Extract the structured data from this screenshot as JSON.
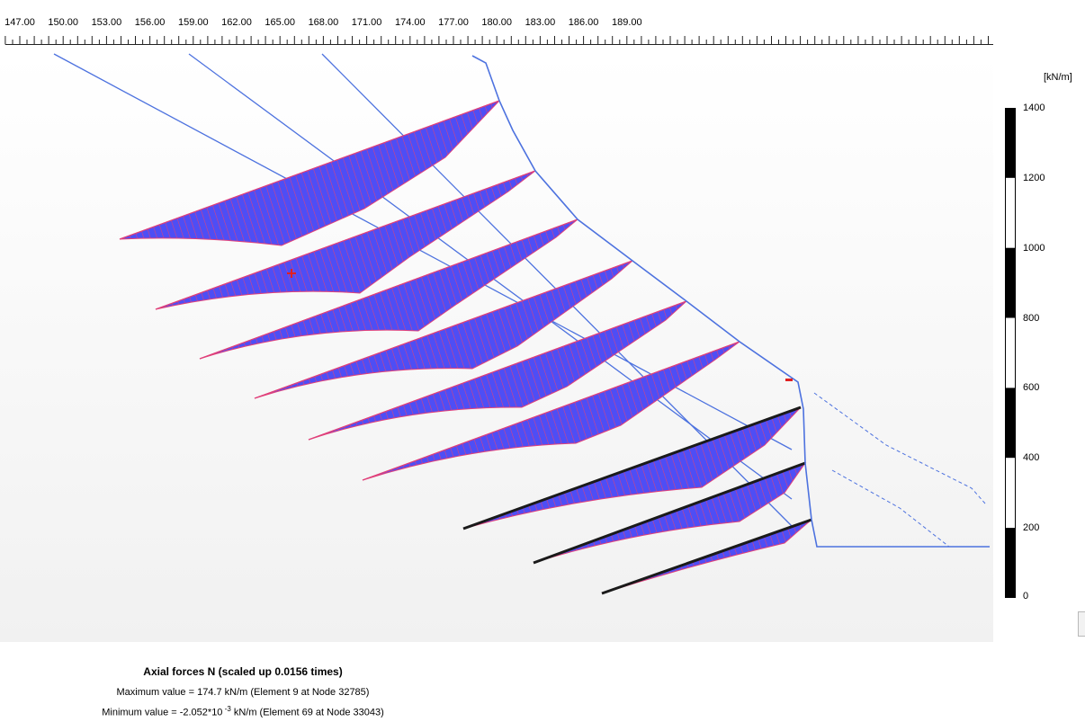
{
  "ruler": {
    "ticks": [
      "147.00",
      "150.00",
      "153.00",
      "156.00",
      "159.00",
      "162.00",
      "165.00",
      "168.00",
      "171.00",
      "174.00",
      "177.00",
      "180.00",
      "183.00",
      "186.00",
      "189.00"
    ]
  },
  "legend": {
    "unit": "[kN/m]",
    "labels": [
      "1400",
      "1200",
      "1000",
      "800",
      "600",
      "400",
      "200",
      "0"
    ]
  },
  "footer": {
    "title": "Axial forces N (scaled up 0.0156 times)",
    "max_text": "Maximum value = 174.7 kN/m (Element 9 at Node 32785)",
    "min_prefix": "Minimum value = -2.052*10",
    "min_exp": " -3",
    "min_suffix": " kN/m (Element 69 at Node 33043)"
  },
  "colors": {
    "structure_line": "#4d72df",
    "fill": "#4e4ef5",
    "hatch": "#e0407a",
    "highlight_line": "#1a1a1a",
    "marker": "#e02020"
  }
}
